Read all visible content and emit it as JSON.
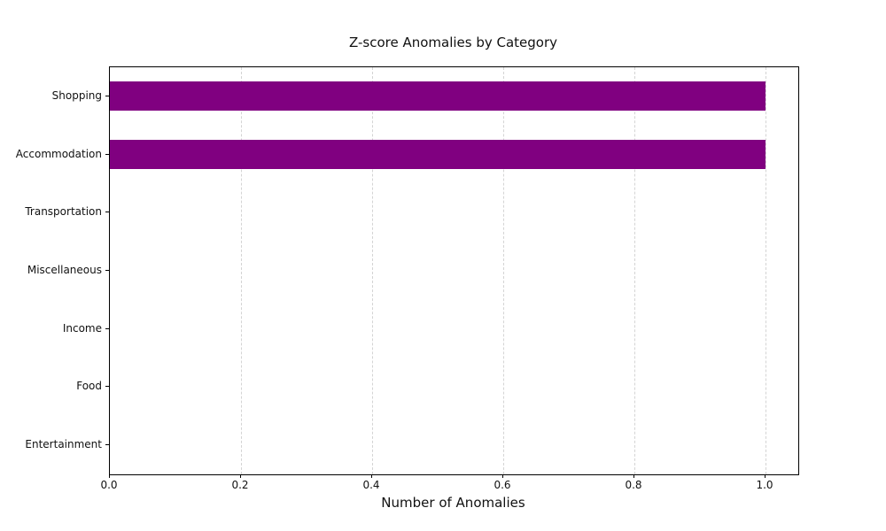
{
  "chart_data": {
    "type": "bar",
    "orientation": "horizontal",
    "title": "Z-score Anomalies by Category",
    "xlabel": "Number of Anomalies",
    "ylabel": "",
    "categories": [
      "Shopping",
      "Accommodation",
      "Transportation",
      "Miscellaneous",
      "Income",
      "Food",
      "Entertainment"
    ],
    "values": [
      1,
      1,
      0,
      0,
      0,
      0,
      0
    ],
    "xticks": [
      0.0,
      0.2,
      0.4,
      0.6,
      0.8,
      1.0
    ],
    "xlim": [
      0,
      1.05
    ],
    "bar_color": "#800080",
    "grid": "vertical-dashed",
    "gridline_color": "#d4d4d4",
    "background_color": "#ffffff",
    "legend": "none"
  }
}
